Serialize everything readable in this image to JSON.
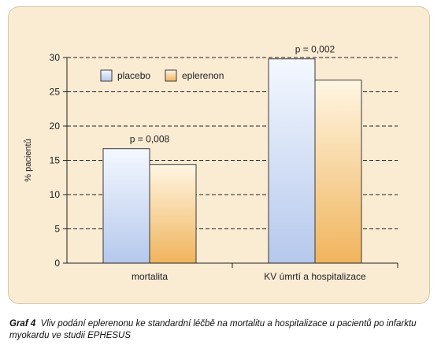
{
  "colors": {
    "panel_bg": "#faebd3",
    "placebo_top": "#f4f8ff",
    "placebo_bottom": "#b5c8ec",
    "eplerenon_top": "#fff6e3",
    "eplerenon_bottom": "#f0b45c",
    "bar_border": "#3a3a3a"
  },
  "chart_data": {
    "type": "bar",
    "categories": [
      "mortalita",
      "KV úmrtí a hospitalizace"
    ],
    "series": [
      {
        "name": "placebo",
        "values": [
          16.7,
          29.8
        ]
      },
      {
        "name": "eplerenon",
        "values": [
          14.4,
          26.7
        ]
      }
    ],
    "annotations": [
      "p = 0,008",
      "p = 0,002"
    ],
    "ylabel": "% pacientů",
    "xlabel": "",
    "ylim": [
      0,
      30
    ],
    "yticks": [
      0,
      5,
      10,
      15,
      20,
      25,
      30
    ],
    "grid": "horizontal dashed",
    "legend_placement": "top-left"
  },
  "caption": {
    "lead": "Graf 4",
    "text": "Vliv podání eplerenonu ke standardní léčbě na mortalitu a hospitalizace u pacientů po infarktu myokardu ve studii EPHESUS"
  }
}
